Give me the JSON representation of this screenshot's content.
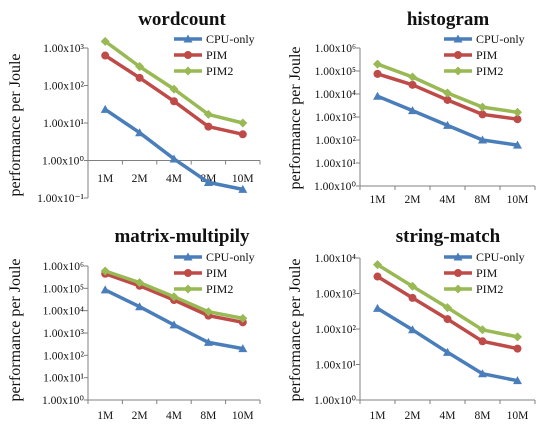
{
  "figure_colors": {
    "cpu_only": "#4a7ebb",
    "pim": "#be4b48",
    "pim2": "#98b954"
  },
  "chart_data": [
    {
      "type": "line",
      "title": "wordcount",
      "ylabel": "performance per Joule",
      "yscale": "log",
      "ylim": [
        0.1,
        1000
      ],
      "yticks": [
        "1.00x10³",
        "1.00x10²",
        "1.00x10¹",
        "1.00x10⁰",
        "1.00x10⁻¹"
      ],
      "categories": [
        "1M",
        "2M",
        "4M",
        "8M",
        "10M"
      ],
      "x_axis_at": 1,
      "legend": "top-right",
      "series": [
        {
          "name": "CPU-only",
          "values": [
            23,
            5.5,
            1.1,
            0.26,
            0.17
          ]
        },
        {
          "name": "PIM",
          "values": [
            630,
            160,
            38,
            8,
            5
          ]
        },
        {
          "name": "PIM2",
          "values": [
            1500,
            320,
            80,
            17,
            10
          ]
        }
      ]
    },
    {
      "type": "line",
      "title": "histogram",
      "ylabel": "performance per Joule",
      "yscale": "log",
      "ylim": [
        1,
        1000000
      ],
      "yticks": [
        "1.00x10⁶",
        "1.00x10⁵",
        "1.00x10⁴",
        "1.00x10³",
        "1.00x10²",
        "1.00x10¹",
        "1.00x10⁰"
      ],
      "categories": [
        "1M",
        "2M",
        "4M",
        "8M",
        "10M"
      ],
      "x_axis_at": 1,
      "legend": "top-right",
      "series": [
        {
          "name": "CPU-only",
          "values": [
            8000,
            1900,
            430,
            100,
            60
          ]
        },
        {
          "name": "PIM",
          "values": [
            75000,
            25000,
            5500,
            1300,
            800
          ]
        },
        {
          "name": "PIM2",
          "values": [
            200000,
            55000,
            11000,
            2700,
            1600
          ]
        }
      ]
    },
    {
      "type": "line",
      "title": "matrix-multipily",
      "ylabel": "performance per Joule",
      "yscale": "log",
      "ylim": [
        1,
        1000000
      ],
      "yticks": [
        "1.00x10⁶",
        "1.00x10⁵",
        "1.00x10⁴",
        "1.00x10³",
        "1.00x10²",
        "1.00x10¹",
        "1.00x10⁰"
      ],
      "categories": [
        "1M",
        "2M",
        "4M",
        "8M",
        "10M"
      ],
      "x_axis_at": 1,
      "legend": "top-right",
      "series": [
        {
          "name": "CPU-only",
          "values": [
            85000,
            15000,
            2300,
            380,
            200
          ]
        },
        {
          "name": "PIM",
          "values": [
            450000,
            130000,
            30000,
            6000,
            3000
          ]
        },
        {
          "name": "PIM2",
          "values": [
            600000,
            180000,
            42000,
            9000,
            4500
          ]
        }
      ]
    },
    {
      "type": "line",
      "title": "string-match",
      "ylabel": "performance per Joule",
      "yscale": "log",
      "ylim": [
        1,
        10000
      ],
      "yticks": [
        "1.00x10⁴",
        "1.00x10³",
        "1.00x10²",
        "1.00x10¹",
        "1.00x10⁰"
      ],
      "categories": [
        "1M",
        "2M",
        "4M",
        "8M",
        "10M"
      ],
      "x_axis_at": 1,
      "legend": "top-right",
      "series": [
        {
          "name": "CPU-only",
          "values": [
            380,
            95,
            22,
            5.5,
            3.5
          ]
        },
        {
          "name": "PIM",
          "values": [
            3000,
            750,
            190,
            45,
            28
          ]
        },
        {
          "name": "PIM2",
          "values": [
            6500,
            1600,
            400,
            95,
            60
          ]
        }
      ]
    }
  ]
}
